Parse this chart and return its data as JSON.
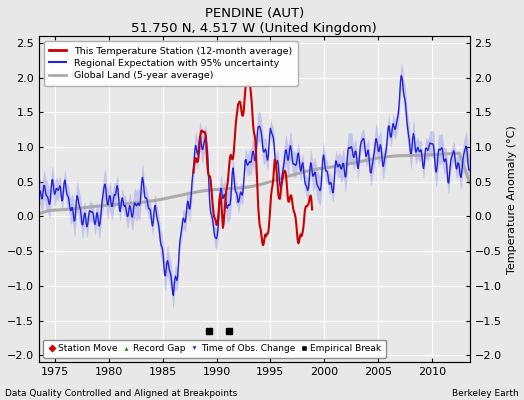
{
  "title": "PENDINE (AUT)",
  "subtitle": "51.750 N, 4.517 W (United Kingdom)",
  "xlabel_bottom": "Data Quality Controlled and Aligned at Breakpoints",
  "xlabel_right": "Berkeley Earth",
  "ylabel_right": "Temperature Anomaly (°C)",
  "xlim": [
    1973.5,
    2013.5
  ],
  "ylim": [
    -2.1,
    2.6
  ],
  "yticks": [
    -2,
    -1.5,
    -1,
    -0.5,
    0,
    0.5,
    1,
    1.5,
    2,
    2.5
  ],
  "xticks": [
    1975,
    1980,
    1985,
    1990,
    1995,
    2000,
    2005,
    2010
  ],
  "background_color": "#e8e8e8",
  "grid_color": "#ffffff",
  "empirical_break_years": [
    1989.3,
    1991.2
  ],
  "empirical_break_y": -1.65,
  "station_start_year": 1987.5,
  "station_end_year": 1999.0,
  "seed": 7
}
